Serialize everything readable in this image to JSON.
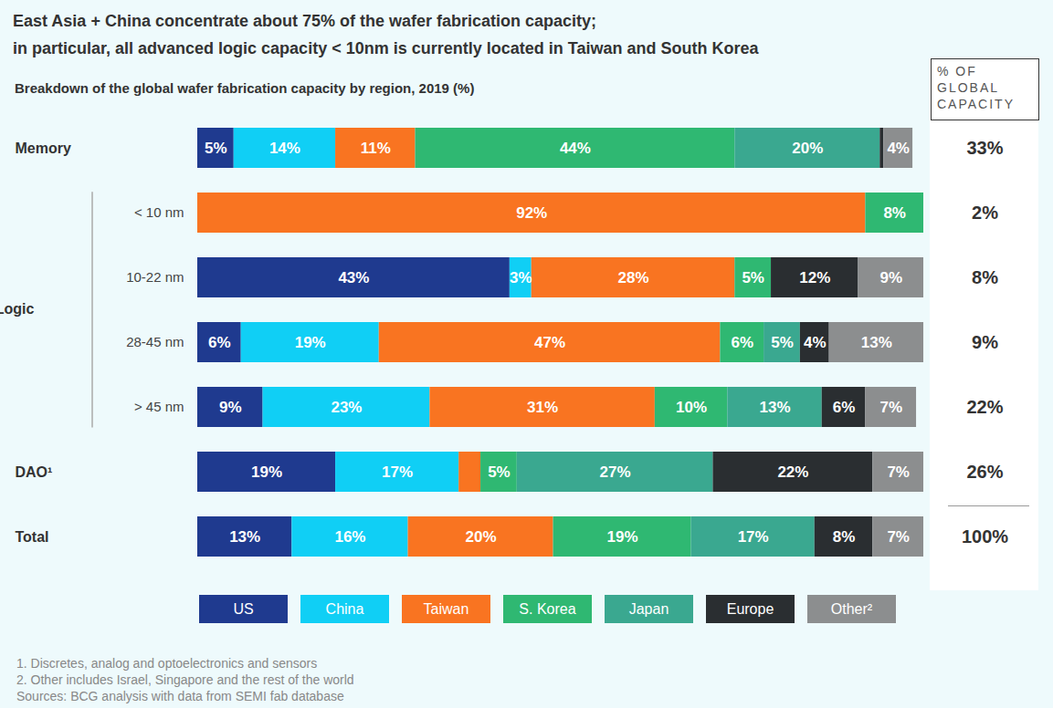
{
  "chart_data": {
    "type": "bar",
    "title": "East Asia + China concentrate about 75% of the wafer fabrication capacity;\nin particular, all advanced logic capacity < 10nm is currently located in Taiwan and South Korea",
    "subtitle": "Breakdown of the global wafer fabrication capacity by region, 2019 (%)",
    "orientation": "horizontal",
    "stacked": true,
    "data_labels": true,
    "legend": "bottom",
    "tick_labels": "y",
    "categories": [
      "Memory",
      "< 10 nm",
      "10-22 nm",
      "28-45 nm",
      "> 45 nm",
      "DAO¹",
      "Total"
    ],
    "groups": [
      {
        "label": "Logic",
        "categories": [
          "< 10 nm",
          "10-22 nm",
          "28-45 nm",
          "> 45 nm"
        ]
      }
    ],
    "xlim": [
      0,
      100
    ],
    "xticks": [],
    "series": [
      {
        "name": "US",
        "color": "#1f3a8f",
        "values": [
          5,
          null,
          43,
          6,
          9,
          19,
          13
        ],
        "value_labels": [
          "5%",
          null,
          "43%",
          "6%",
          "9%",
          "19%",
          "13%"
        ]
      },
      {
        "name": "China",
        "color": "#10cff5",
        "values": [
          14,
          null,
          3,
          19,
          23,
          17,
          16
        ],
        "value_labels": [
          "14%",
          null,
          "3%",
          "19%",
          "23%",
          "17%",
          "16%"
        ]
      },
      {
        "name": "Taiwan",
        "color": "#f97421",
        "values": [
          11,
          92,
          28,
          47,
          31,
          3,
          20
        ],
        "value_labels": [
          "11%",
          "92%",
          "28%",
          "47%",
          "31%",
          null,
          "20%"
        ]
      },
      {
        "name": "S. Korea",
        "color": "#2fb872",
        "values": [
          44,
          8,
          5,
          6,
          10,
          5,
          19
        ],
        "value_labels": [
          "44%",
          "8%",
          "5%",
          "6%",
          "10%",
          "5%",
          "19%"
        ]
      },
      {
        "name": "Japan",
        "color": "#3aa890",
        "values": [
          20,
          null,
          null,
          5,
          13,
          27,
          17
        ],
        "value_labels": [
          "20%",
          null,
          null,
          "5%",
          "13%",
          "27%",
          "17%"
        ]
      },
      {
        "name": "Europe",
        "color": "#2a2e31",
        "values": [
          0.5,
          null,
          12,
          4,
          6,
          22,
          8
        ],
        "value_labels": [
          null,
          null,
          "12%",
          "4%",
          "6%",
          "22%",
          "8%"
        ]
      },
      {
        "name": "Other²",
        "color": "#8c8e8f",
        "values": [
          4,
          null,
          9,
          13,
          7,
          7,
          7
        ],
        "value_labels": [
          "4%",
          null,
          "9%",
          "13%",
          "7%",
          "7%",
          "7%"
        ]
      }
    ],
    "global_capacity": {
      "title": "% OF GLOBAL CAPACITY",
      "values": [
        33,
        2,
        8,
        9,
        22,
        26,
        100
      ],
      "value_labels": [
        "33%",
        "2%",
        "8%",
        "9%",
        "22%",
        "26%",
        "100%"
      ]
    },
    "footnotes": [
      "1. Discretes, analog and optoelectronics and sensors",
      "2. Other includes Israel, Singapore and the rest of the world",
      "Sources: BCG analysis with data from SEMI fab database"
    ]
  }
}
